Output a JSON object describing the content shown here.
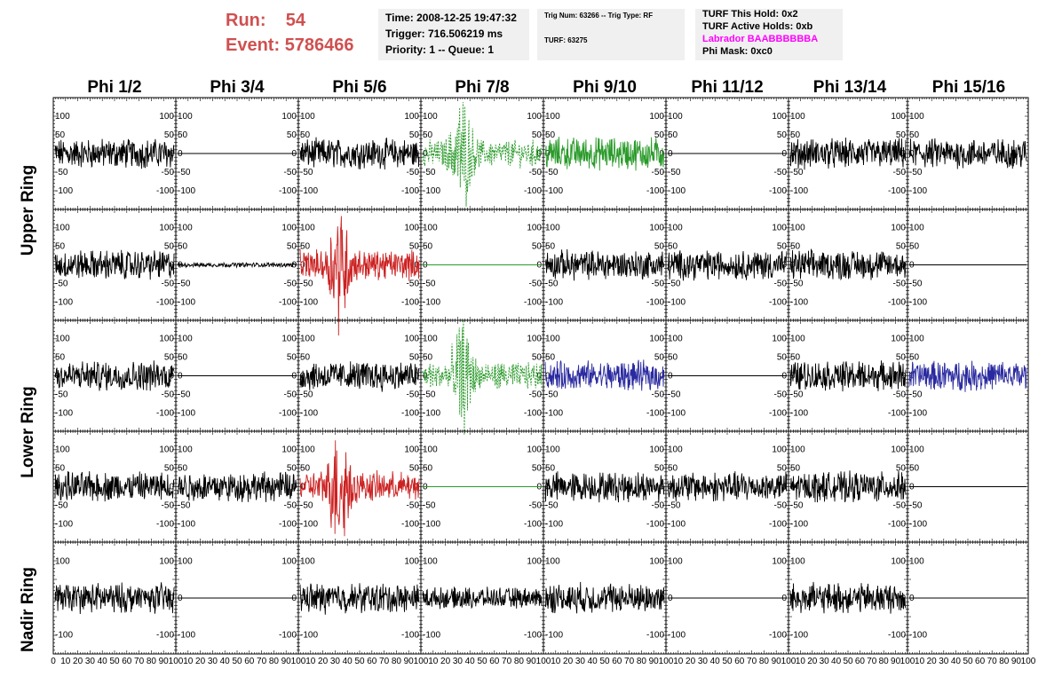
{
  "header": {
    "run_label": "Run:",
    "run_value": "54",
    "event_label": "Event:",
    "event_value": "5786466"
  },
  "info1": {
    "time": "Time: 2008-12-25 19:47:32",
    "trigger": "Trigger: 716.506219 ms",
    "priority": "Priority: 1 -- Queue: 1"
  },
  "info2": {
    "trig": "Trig Num: 63266 -- Trig Type: RF",
    "turf": "TURF: 63275"
  },
  "info3": {
    "this_hold": "TURF This Hold: 0x2",
    "active_holds": "TURF Active Holds: 0xb",
    "labrador": "Labrador BAABBBBBBA",
    "phi_mask": "Phi Mask: 0xc0"
  },
  "colors": {
    "title": "#d05050",
    "labrador": "#ff00ff",
    "green": "#2a9a2a",
    "red": "#cc2222",
    "blue": "#2a2aa0",
    "black": "#000000",
    "info_bg": "#f0f0f0"
  },
  "columns": [
    "Phi 1/2",
    "Phi 3/4",
    "Phi 5/6",
    "Phi 7/8",
    "Phi 9/10",
    "Phi 11/12",
    "Phi 13/14",
    "Phi 15/16"
  ],
  "rows": [
    {
      "label": "Upper Ring",
      "span": [
        0,
        1
      ]
    },
    {
      "label": "Lower Ring",
      "span": [
        2,
        3
      ]
    },
    {
      "label": "Nadir Ring",
      "span": [
        4,
        4
      ]
    }
  ],
  "y_ticks": [
    "100",
    "50",
    "0",
    "-50",
    "-100"
  ],
  "y_ticks_nadir": [
    "100",
    "0",
    "-100"
  ],
  "x_ticks": [
    "0",
    "10",
    "20",
    "30",
    "40",
    "50",
    "60",
    "70",
    "80",
    "90",
    "100"
  ],
  "panels": [
    [
      "noise",
      "flat",
      "noise",
      "green_dash_pulse",
      "green_noise",
      "flat",
      "noise",
      "noise"
    ],
    [
      "noise",
      "flat_small",
      "red_pulse",
      "green_flat",
      "noise",
      "noise",
      "noise",
      "flat"
    ],
    [
      "noise",
      "flat",
      "noise",
      "green_dash_pulse",
      "blue_noise",
      "flat",
      "noise",
      "blue_noise"
    ],
    [
      "noise",
      "noise",
      "red_pulse",
      "green_flat",
      "noise",
      "noise",
      "noise",
      "flat"
    ],
    [
      "noise",
      "flat",
      "noise",
      "noise_faint",
      "noise",
      "flat",
      "noise",
      "flat"
    ]
  ]
}
